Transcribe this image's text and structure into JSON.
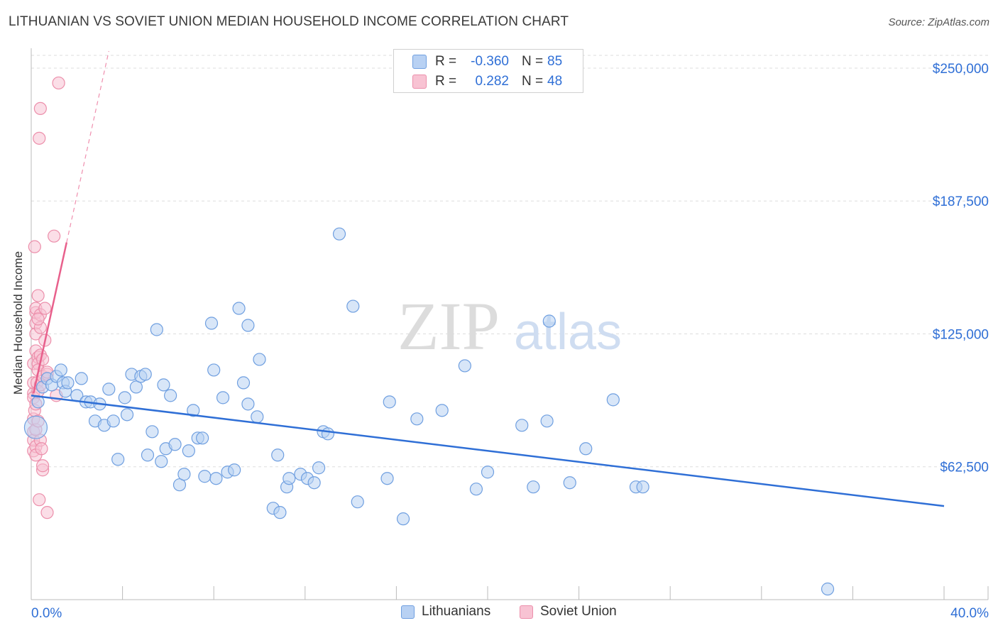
{
  "title": "LITHUANIAN VS SOVIET UNION MEDIAN HOUSEHOLD INCOME CORRELATION CHART",
  "source": "Source: ZipAtlas.com",
  "watermark": {
    "zip": "ZIP",
    "atlas": "atlas"
  },
  "legend_top": [
    {
      "r_label": "R =",
      "r_value": "-0.360",
      "n_label": "N =",
      "n_value": "85",
      "swatch_fill": "#b8d1f3",
      "swatch_border": "#6f9fe0"
    },
    {
      "r_label": "R =",
      "r_value": "0.282",
      "n_label": "N =",
      "n_value": "48",
      "swatch_fill": "#f8c3d3",
      "swatch_border": "#ec8fab"
    }
  ],
  "legend_bottom": [
    {
      "label": "Lithuanians",
      "fill": "#b8d1f3",
      "border": "#6f9fe0"
    },
    {
      "label": "Soviet Union",
      "fill": "#f8c3d3",
      "border": "#ec8fab"
    }
  ],
  "chart_data": {
    "type": "scatter",
    "title": "LITHUANIAN VS SOVIET UNION MEDIAN HOUSEHOLD INCOME CORRELATION CHART",
    "xlabel": "",
    "ylabel": "Median Household Income",
    "xlim": [
      0,
      40
    ],
    "ylim": [
      0,
      256000
    ],
    "x_tick_labels": [
      "0.0%",
      "40.0%"
    ],
    "y_ticks": [
      {
        "value": 62500,
        "label": "$62,500"
      },
      {
        "value": 125000,
        "label": "$125,000"
      },
      {
        "value": 187500,
        "label": "$187,500"
      },
      {
        "value": 250000,
        "label": "$250,000"
      }
    ],
    "grid": true,
    "colors": {
      "lithuanians": "#6f9fe0",
      "lithuanians_fill": "#b8d1f3",
      "soviet": "#ec8fab",
      "soviet_fill": "#f8c3d3",
      "blue_line": "#2f6fd6",
      "pink_line": "#e8608c",
      "tick_text": "#2f6fd6"
    },
    "series": [
      {
        "name": "Lithuanians",
        "points": [
          [
            0.2,
            81000
          ],
          [
            0.3,
            93000
          ],
          [
            0.5,
            100000
          ],
          [
            0.7,
            104000
          ],
          [
            0.9,
            101000
          ],
          [
            1.1,
            105000
          ],
          [
            1.3,
            108000
          ],
          [
            1.4,
            102000
          ],
          [
            1.5,
            98000
          ],
          [
            1.6,
            102000
          ],
          [
            2.0,
            96000
          ],
          [
            2.2,
            104000
          ],
          [
            2.4,
            93000
          ],
          [
            2.6,
            93000
          ],
          [
            2.8,
            84000
          ],
          [
            3.0,
            92000
          ],
          [
            3.2,
            82000
          ],
          [
            3.4,
            99000
          ],
          [
            3.6,
            84000
          ],
          [
            3.8,
            66000
          ],
          [
            4.1,
            95000
          ],
          [
            4.2,
            87000
          ],
          [
            4.4,
            106000
          ],
          [
            4.6,
            100000
          ],
          [
            4.8,
            105000
          ],
          [
            5.0,
            106000
          ],
          [
            5.1,
            68000
          ],
          [
            5.3,
            79000
          ],
          [
            5.5,
            127000
          ],
          [
            5.7,
            65000
          ],
          [
            5.8,
            101000
          ],
          [
            5.9,
            71000
          ],
          [
            6.1,
            96000
          ],
          [
            6.3,
            73000
          ],
          [
            6.5,
            54000
          ],
          [
            6.7,
            59000
          ],
          [
            6.9,
            70000
          ],
          [
            7.1,
            89000
          ],
          [
            7.3,
            76000
          ],
          [
            7.5,
            76000
          ],
          [
            7.6,
            58000
          ],
          [
            7.9,
            130000
          ],
          [
            8.0,
            108000
          ],
          [
            8.1,
            57000
          ],
          [
            8.4,
            95000
          ],
          [
            8.6,
            60000
          ],
          [
            8.9,
            61000
          ],
          [
            9.1,
            137000
          ],
          [
            9.3,
            102000
          ],
          [
            9.5,
            92000
          ],
          [
            9.5,
            129000
          ],
          [
            9.9,
            86000
          ],
          [
            10.0,
            113000
          ],
          [
            10.6,
            43000
          ],
          [
            10.8,
            68000
          ],
          [
            10.9,
            41000
          ],
          [
            11.2,
            53000
          ],
          [
            11.3,
            57000
          ],
          [
            11.8,
            59000
          ],
          [
            12.1,
            57000
          ],
          [
            12.4,
            55000
          ],
          [
            12.6,
            62000
          ],
          [
            12.8,
            79000
          ],
          [
            13.0,
            78000
          ],
          [
            13.5,
            172000
          ],
          [
            14.1,
            138000
          ],
          [
            14.3,
            46000
          ],
          [
            15.6,
            57000
          ],
          [
            15.7,
            93000
          ],
          [
            16.3,
            38000
          ],
          [
            16.9,
            85000
          ],
          [
            18.0,
            89000
          ],
          [
            19.0,
            110000
          ],
          [
            19.5,
            52000
          ],
          [
            20.0,
            60000
          ],
          [
            21.5,
            82000
          ],
          [
            22.0,
            53000
          ],
          [
            22.6,
            84000
          ],
          [
            22.7,
            131000
          ],
          [
            23.6,
            55000
          ],
          [
            24.3,
            71000
          ],
          [
            25.5,
            94000
          ],
          [
            26.5,
            53000
          ],
          [
            26.8,
            53000
          ],
          [
            34.9,
            5000
          ]
        ]
      },
      {
        "name": "Soviet Union",
        "points": [
          [
            0.1,
            97000
          ],
          [
            0.1,
            95000
          ],
          [
            0.1,
            102000
          ],
          [
            0.1,
            111000
          ],
          [
            0.1,
            85000
          ],
          [
            0.1,
            79000
          ],
          [
            0.1,
            70000
          ],
          [
            0.1,
            75000
          ],
          [
            0.15,
            89000
          ],
          [
            0.15,
            166000
          ],
          [
            0.2,
            117000
          ],
          [
            0.2,
            130000
          ],
          [
            0.2,
            135000
          ],
          [
            0.2,
            137000
          ],
          [
            0.2,
            125000
          ],
          [
            0.2,
            92000
          ],
          [
            0.2,
            80000
          ],
          [
            0.2,
            72000
          ],
          [
            0.2,
            68000
          ],
          [
            0.25,
            102000
          ],
          [
            0.3,
            114000
          ],
          [
            0.3,
            111000
          ],
          [
            0.3,
            108000
          ],
          [
            0.3,
            98000
          ],
          [
            0.3,
            84000
          ],
          [
            0.3,
            143000
          ],
          [
            0.35,
            47000
          ],
          [
            0.35,
            217000
          ],
          [
            0.4,
            231000
          ],
          [
            0.4,
            134000
          ],
          [
            0.4,
            128000
          ],
          [
            0.4,
            115000
          ],
          [
            0.4,
            101000
          ],
          [
            0.4,
            75000
          ],
          [
            0.45,
            71000
          ],
          [
            0.5,
            113000
          ],
          [
            0.5,
            105000
          ],
          [
            0.5,
            61000
          ],
          [
            0.5,
            63000
          ],
          [
            0.6,
            122000
          ],
          [
            0.6,
            137000
          ],
          [
            0.7,
            106000
          ],
          [
            0.7,
            107000
          ],
          [
            0.7,
            41000
          ],
          [
            1.0,
            171000
          ],
          [
            1.1,
            96000
          ],
          [
            1.2,
            243000
          ],
          [
            0.3,
            132000
          ]
        ]
      }
    ],
    "trendlines": [
      {
        "series": "Lithuanians",
        "x": [
          0,
          40
        ],
        "y": [
          96000,
          44000
        ]
      },
      {
        "series": "Soviet Union",
        "x": [
          0.1,
          1.55
        ],
        "y": [
          97000,
          168000
        ],
        "dashed_extension_to": [
          3.4,
          258000
        ]
      }
    ]
  }
}
